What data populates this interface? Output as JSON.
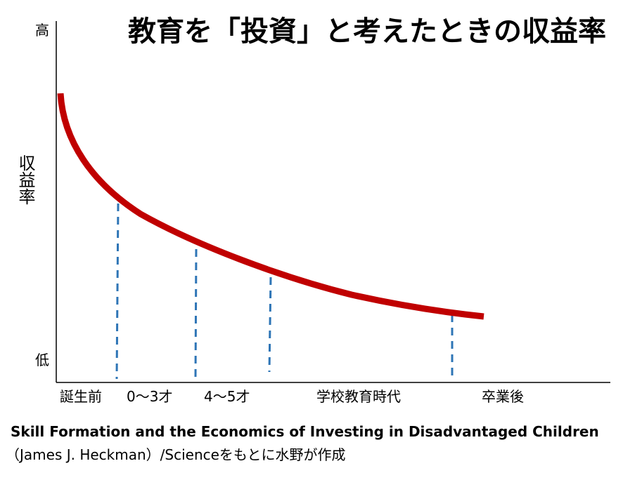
{
  "title": "教育を「投資」と考えたときの収益率",
  "y_axis": {
    "high": "高",
    "low": "低",
    "label": "収益率"
  },
  "x_labels": [
    "誕生前",
    "0〜3才",
    "4〜5才",
    "学校教育時代",
    "卒業後"
  ],
  "caption": {
    "line1": "Skill Formation and the Economics of Investing in Disadvantaged Children",
    "line2": "（James J. Heckman）/Scienceをもとに水野が作成"
  }
}
